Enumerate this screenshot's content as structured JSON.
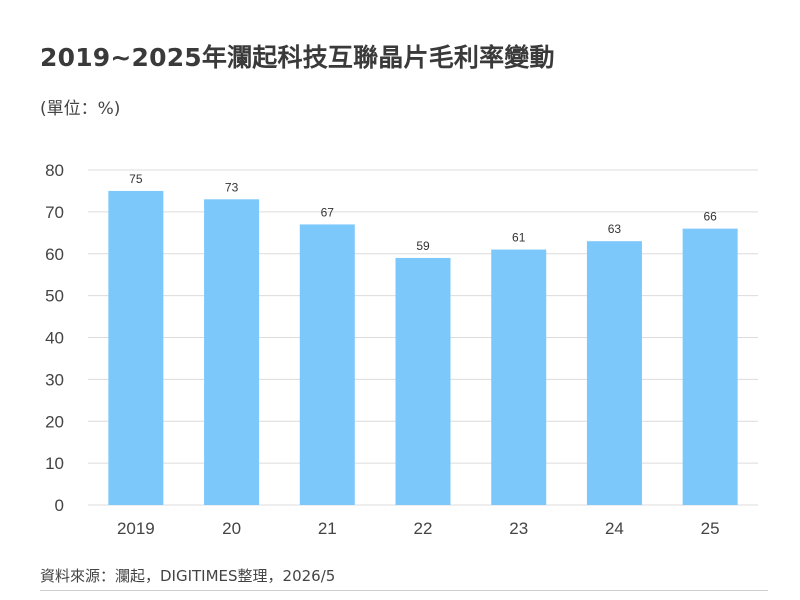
{
  "header": {
    "title": "2019~2025年瀾起科技互聯晶片毛利率變動",
    "unit": "(單位：%)"
  },
  "footer": {
    "source": "資料來源：瀾起，DIGITIMES整理，2026/5"
  },
  "colors": {
    "bar": "#7cc8fb",
    "grid": "#dcdcdc"
  },
  "chart_data": {
    "type": "bar",
    "title": "2019~2025年瀾起科技互聯晶片毛利率變動",
    "xlabel": "",
    "ylabel": "(單位：%)",
    "categories": [
      "2019",
      "20",
      "21",
      "22",
      "23",
      "24",
      "25"
    ],
    "values": [
      75,
      73,
      67,
      59,
      61,
      63,
      66
    ],
    "data_labels": [
      "75",
      "73",
      "67",
      "59",
      "61",
      "63",
      "66"
    ],
    "ylim": [
      0,
      80
    ],
    "yticks": [
      0,
      10,
      20,
      30,
      40,
      50,
      60,
      70,
      80
    ],
    "grid": true,
    "legend": "none"
  }
}
